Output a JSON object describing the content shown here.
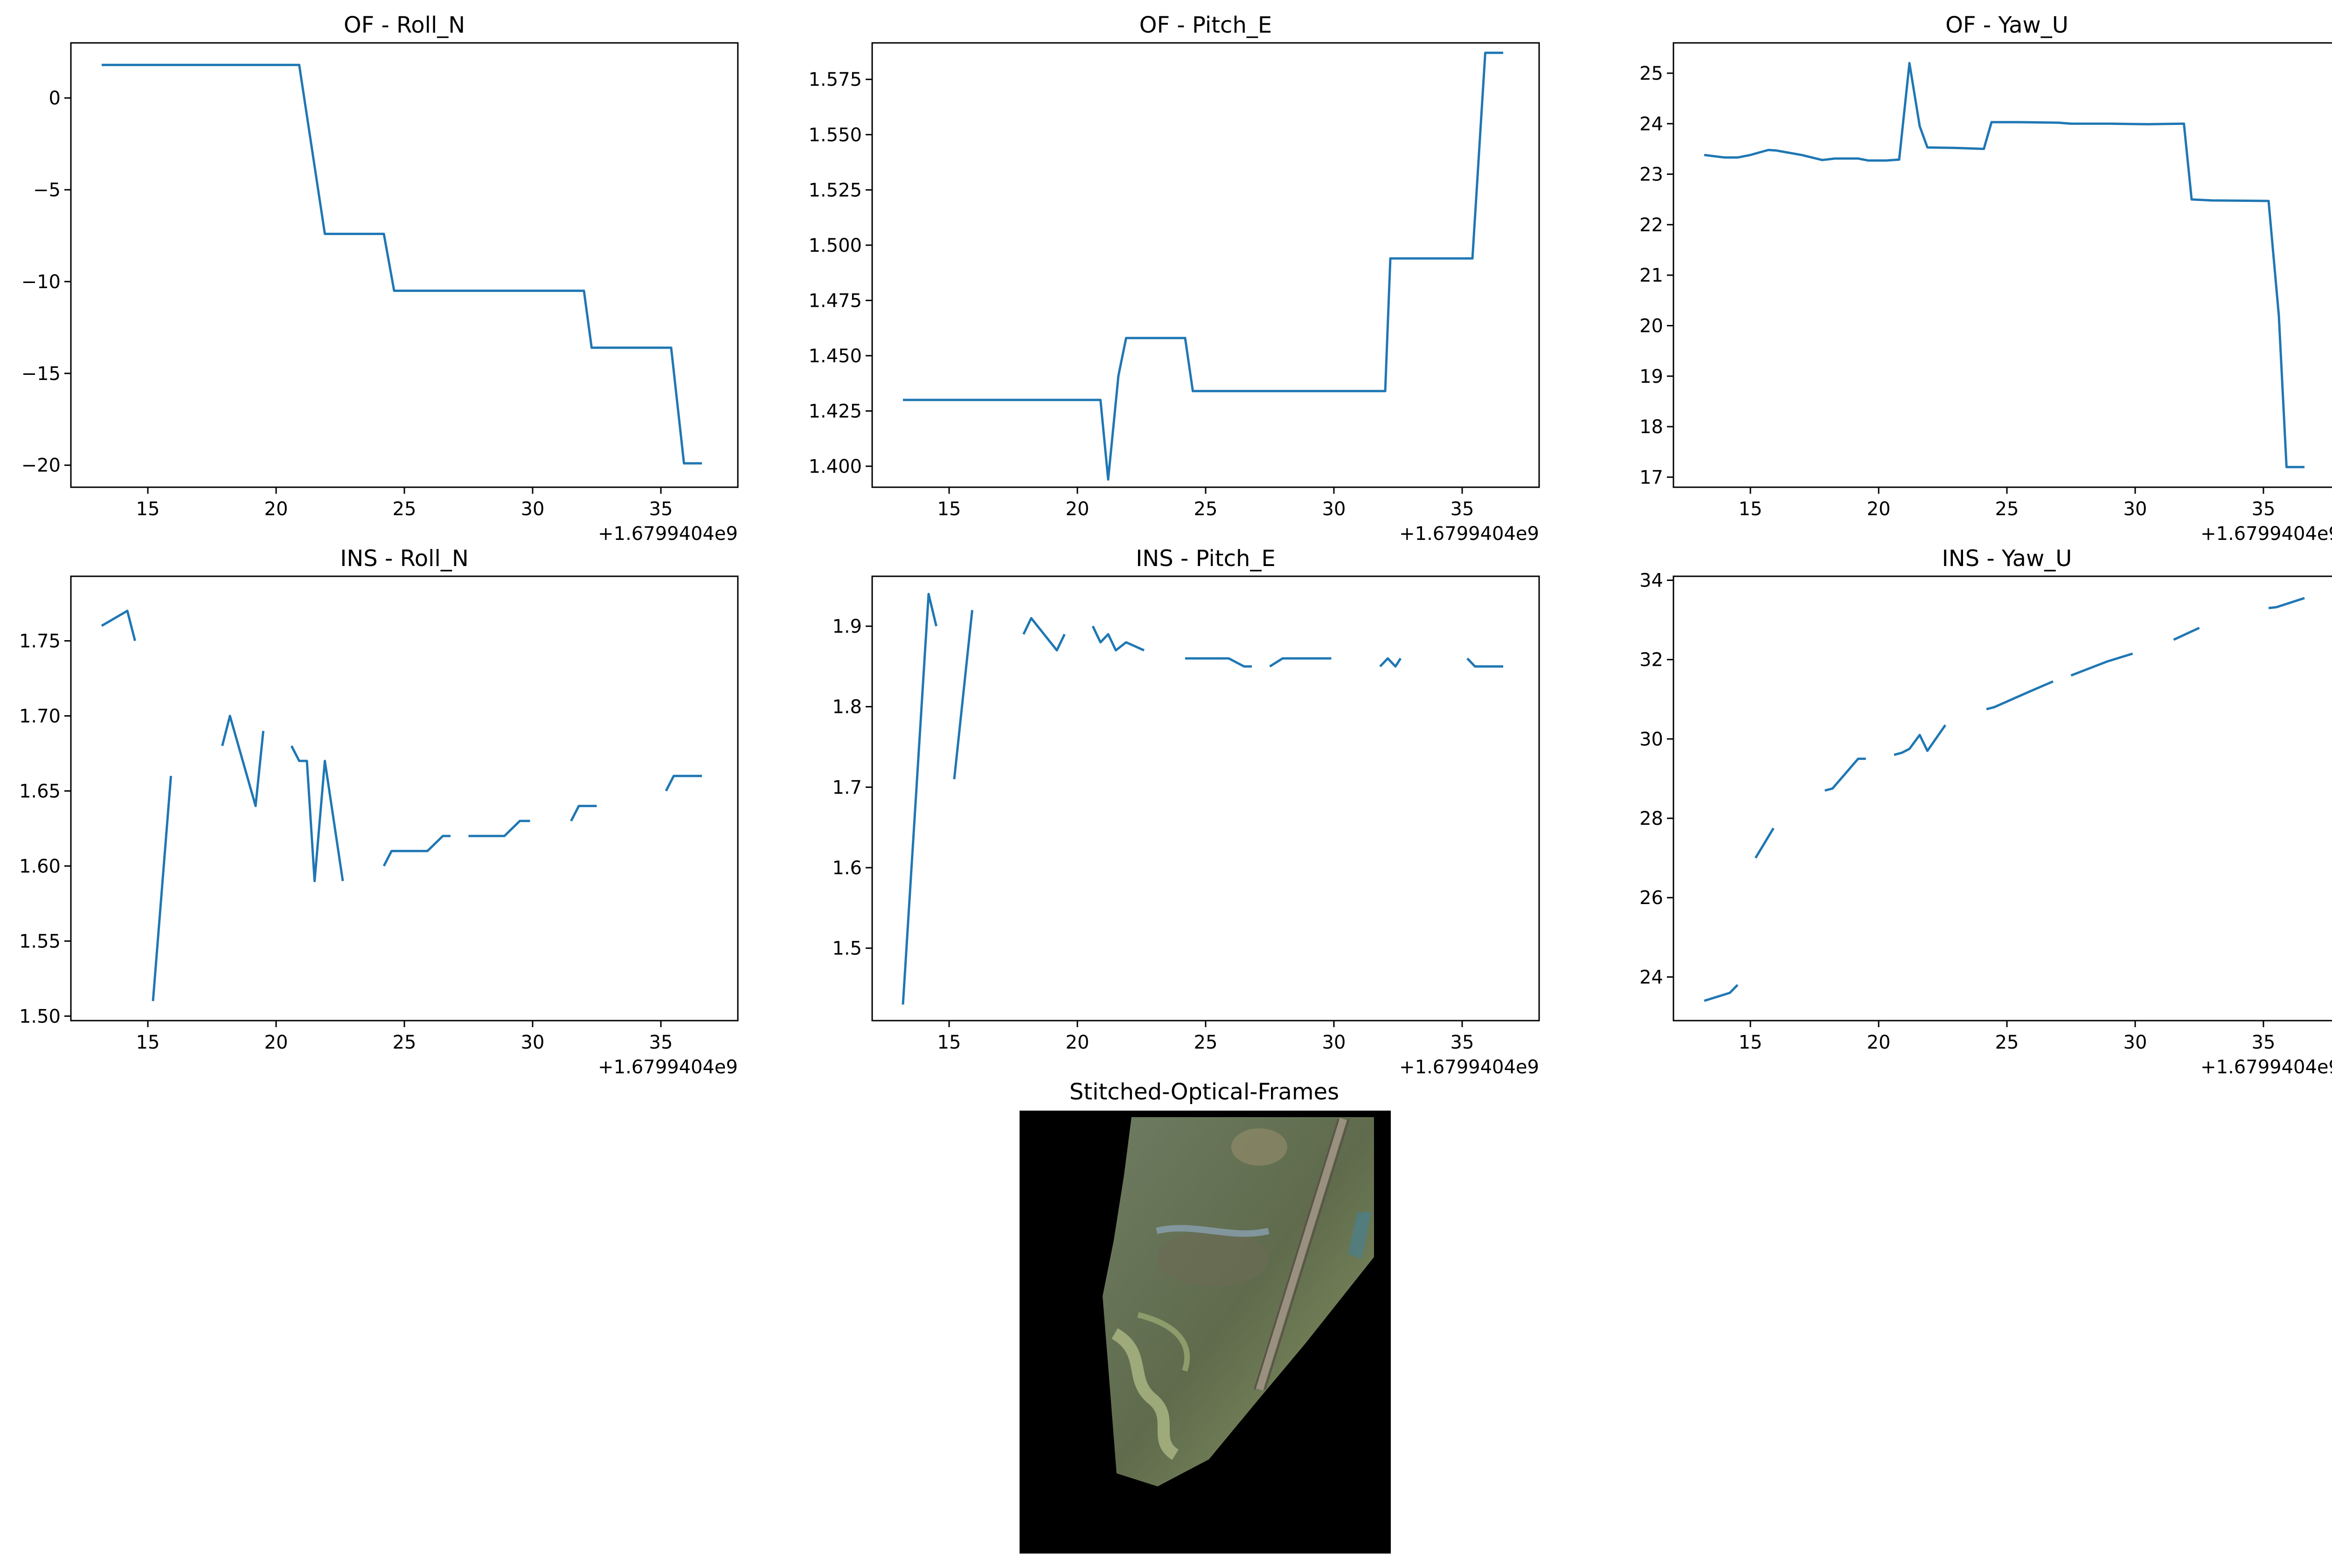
{
  "figure": {
    "x_offset_label": "+1.6799404e9",
    "line_color": "#1f77b4",
    "image_panel": {
      "title": "Stitched-Optical-Frames",
      "background_color": "#000000",
      "content": "stitched aerial mosaic: green/brown terrain, winding river, railway line along the right edge"
    }
  },
  "chart_data": [
    {
      "type": "line",
      "title": "OF - Roll_N",
      "xlim": [
        12,
        38
      ],
      "ylim": [
        -21.2,
        3
      ],
      "xticks": [
        15,
        20,
        25,
        30,
        35
      ],
      "yticks": [
        0,
        -5,
        -10,
        -15,
        -20
      ],
      "ytick_labels": [
        "0",
        "−5",
        "−10",
        "−15",
        "−20"
      ],
      "series": [
        {
          "segments": [
            [
              [
                13.2,
                1.8
              ],
              [
                20.9,
                1.8
              ],
              [
                21.9,
                -7.4
              ],
              [
                24.2,
                -7.4
              ],
              [
                24.6,
                -10.5
              ],
              [
                32.0,
                -10.5
              ],
              [
                32.3,
                -13.6
              ],
              [
                35.4,
                -13.6
              ],
              [
                35.9,
                -19.9
              ],
              [
                36.6,
                -19.9
              ]
            ]
          ]
        }
      ]
    },
    {
      "type": "line",
      "title": "OF - Pitch_E",
      "xlim": [
        12,
        38
      ],
      "ylim": [
        1.3905,
        1.5915
      ],
      "xticks": [
        15,
        20,
        25,
        30,
        35
      ],
      "yticks": [
        1.4,
        1.425,
        1.45,
        1.475,
        1.5,
        1.525,
        1.55,
        1.575
      ],
      "ytick_labels": [
        "1.400",
        "1.425",
        "1.450",
        "1.475",
        "1.500",
        "1.525",
        "1.550",
        "1.575"
      ],
      "series": [
        {
          "segments": [
            [
              [
                13.2,
                1.43
              ],
              [
                20.9,
                1.43
              ],
              [
                21.2,
                1.394
              ],
              [
                21.6,
                1.441
              ],
              [
                21.9,
                1.458
              ],
              [
                24.2,
                1.458
              ],
              [
                24.5,
                1.434
              ],
              [
                32.0,
                1.434
              ],
              [
                32.2,
                1.494
              ],
              [
                35.4,
                1.494
              ],
              [
                35.9,
                1.587
              ],
              [
                36.6,
                1.587
              ]
            ]
          ]
        }
      ]
    },
    {
      "type": "line",
      "title": "OF - Yaw_U",
      "xlim": [
        12,
        38
      ],
      "ylim": [
        16.8,
        25.6
      ],
      "xticks": [
        15,
        20,
        25,
        30,
        35
      ],
      "yticks": [
        17,
        18,
        19,
        20,
        21,
        22,
        23,
        24,
        25
      ],
      "ytick_labels": [
        "17",
        "18",
        "19",
        "20",
        "21",
        "22",
        "23",
        "24",
        "25"
      ],
      "series": [
        {
          "segments": [
            [
              [
                13.2,
                23.38
              ],
              [
                14.0,
                23.33
              ],
              [
                14.5,
                23.33
              ],
              [
                15.0,
                23.38
              ],
              [
                15.7,
                23.48
              ],
              [
                16.0,
                23.47
              ],
              [
                17.0,
                23.38
              ],
              [
                17.8,
                23.28
              ],
              [
                18.3,
                23.31
              ],
              [
                19.2,
                23.31
              ],
              [
                19.6,
                23.27
              ],
              [
                20.3,
                23.27
              ],
              [
                20.8,
                23.29
              ],
              [
                21.2,
                25.2
              ],
              [
                21.6,
                23.95
              ],
              [
                21.9,
                23.53
              ],
              [
                23.0,
                23.52
              ],
              [
                24.1,
                23.5
              ],
              [
                24.4,
                24.03
              ],
              [
                25.5,
                24.03
              ],
              [
                27.0,
                24.02
              ],
              [
                27.5,
                24.0
              ],
              [
                29.0,
                24.0
              ],
              [
                30.5,
                23.99
              ],
              [
                31.9,
                24.0
              ],
              [
                32.2,
                22.5
              ],
              [
                33.0,
                22.48
              ],
              [
                35.2,
                22.47
              ],
              [
                35.6,
                20.2
              ],
              [
                35.9,
                17.2
              ],
              [
                36.6,
                17.2
              ]
            ]
          ]
        }
      ]
    },
    {
      "type": "line",
      "title": "INS - Roll_N",
      "xlim": [
        12,
        38
      ],
      "ylim": [
        1.497,
        1.793
      ],
      "xticks": [
        15,
        20,
        25,
        30,
        35
      ],
      "yticks": [
        1.5,
        1.55,
        1.6,
        1.65,
        1.7,
        1.75
      ],
      "ytick_labels": [
        "1.50",
        "1.55",
        "1.60",
        "1.65",
        "1.70",
        "1.75"
      ],
      "series": [
        {
          "segments": [
            [
              [
                13.2,
                1.76
              ],
              [
                14.2,
                1.77
              ],
              [
                14.5,
                1.75
              ]
            ],
            [
              [
                15.2,
                1.51
              ],
              [
                15.9,
                1.66
              ]
            ],
            [
              [
                17.9,
                1.68
              ],
              [
                18.2,
                1.7
              ],
              [
                19.2,
                1.64
              ],
              [
                19.5,
                1.69
              ]
            ],
            [
              [
                20.6,
                1.68
              ],
              [
                20.9,
                1.67
              ],
              [
                21.2,
                1.67
              ],
              [
                21.5,
                1.59
              ],
              [
                21.9,
                1.67
              ],
              [
                22.6,
                1.59
              ]
            ],
            [
              [
                24.2,
                1.6
              ],
              [
                24.5,
                1.61
              ],
              [
                25.9,
                1.61
              ],
              [
                26.5,
                1.62
              ],
              [
                26.8,
                1.62
              ]
            ],
            [
              [
                27.5,
                1.62
              ],
              [
                28.9,
                1.62
              ],
              [
                29.5,
                1.63
              ],
              [
                29.9,
                1.63
              ]
            ],
            [
              [
                31.5,
                1.63
              ],
              [
                31.8,
                1.64
              ],
              [
                32.5,
                1.64
              ]
            ],
            [
              [
                35.2,
                1.65
              ],
              [
                35.5,
                1.66
              ],
              [
                36.6,
                1.66
              ]
            ]
          ]
        }
      ]
    },
    {
      "type": "line",
      "title": "INS - Pitch_E",
      "xlim": [
        12,
        38
      ],
      "ylim": [
        1.41,
        1.962
      ],
      "xticks": [
        15,
        20,
        25,
        30,
        35
      ],
      "yticks": [
        1.5,
        1.6,
        1.7,
        1.8,
        1.9
      ],
      "ytick_labels": [
        "1.5",
        "1.6",
        "1.7",
        "1.8",
        "1.9"
      ],
      "series": [
        {
          "segments": [
            [
              [
                13.2,
                1.43
              ],
              [
                14.2,
                1.94
              ],
              [
                14.5,
                1.9
              ]
            ],
            [
              [
                15.2,
                1.71
              ],
              [
                15.9,
                1.92
              ]
            ],
            [
              [
                17.9,
                1.89
              ],
              [
                18.2,
                1.91
              ],
              [
                19.2,
                1.87
              ],
              [
                19.5,
                1.89
              ]
            ],
            [
              [
                20.6,
                1.9
              ],
              [
                20.9,
                1.88
              ],
              [
                21.2,
                1.89
              ],
              [
                21.5,
                1.87
              ],
              [
                21.9,
                1.88
              ],
              [
                22.6,
                1.87
              ]
            ],
            [
              [
                24.2,
                1.86
              ],
              [
                25.9,
                1.86
              ],
              [
                26.5,
                1.85
              ],
              [
                26.8,
                1.85
              ]
            ],
            [
              [
                27.5,
                1.85
              ],
              [
                28.0,
                1.86
              ],
              [
                29.9,
                1.86
              ]
            ],
            [
              [
                31.8,
                1.85
              ],
              [
                32.1,
                1.86
              ],
              [
                32.4,
                1.85
              ],
              [
                32.6,
                1.86
              ]
            ],
            [
              [
                35.2,
                1.86
              ],
              [
                35.5,
                1.85
              ],
              [
                36.6,
                1.85
              ]
            ]
          ]
        }
      ]
    },
    {
      "type": "line",
      "title": "INS - Yaw_U",
      "xlim": [
        12,
        38
      ],
      "ylim": [
        22.9,
        34.1
      ],
      "xticks": [
        15,
        20,
        25,
        30,
        35
      ],
      "yticks": [
        24,
        26,
        28,
        30,
        32,
        34
      ],
      "ytick_labels": [
        "24",
        "26",
        "28",
        "30",
        "32",
        "34"
      ],
      "series": [
        {
          "segments": [
            [
              [
                13.2,
                23.4
              ],
              [
                14.2,
                23.6
              ],
              [
                14.5,
                23.8
              ]
            ],
            [
              [
                15.2,
                27.0
              ],
              [
                15.9,
                27.75
              ]
            ],
            [
              [
                17.9,
                28.7
              ],
              [
                18.2,
                28.75
              ],
              [
                19.2,
                29.5
              ],
              [
                19.5,
                29.5
              ]
            ],
            [
              [
                20.6,
                29.6
              ],
              [
                20.9,
                29.65
              ],
              [
                21.2,
                29.75
              ],
              [
                21.6,
                30.1
              ],
              [
                21.9,
                29.7
              ],
              [
                22.6,
                30.35
              ]
            ],
            [
              [
                24.2,
                30.75
              ],
              [
                24.5,
                30.8
              ],
              [
                25.9,
                31.2
              ],
              [
                26.8,
                31.45
              ]
            ],
            [
              [
                27.5,
                31.6
              ],
              [
                27.9,
                31.7
              ],
              [
                28.9,
                31.95
              ],
              [
                29.9,
                32.15
              ]
            ],
            [
              [
                31.5,
                32.5
              ],
              [
                32.5,
                32.8
              ]
            ],
            [
              [
                35.2,
                33.3
              ],
              [
                35.5,
                33.32
              ],
              [
                36.6,
                33.55
              ]
            ]
          ]
        }
      ]
    }
  ]
}
